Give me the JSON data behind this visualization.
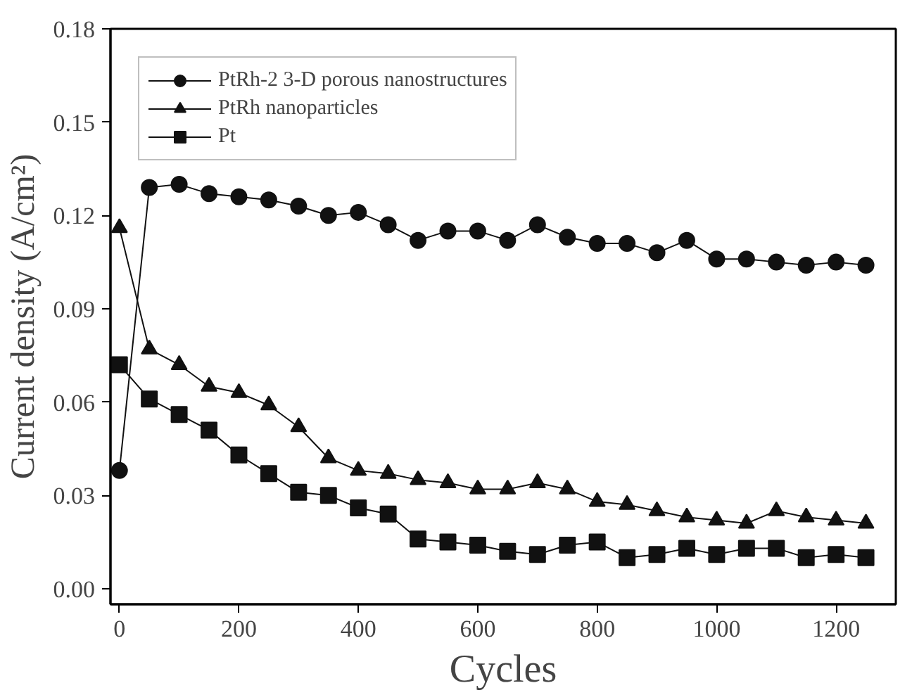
{
  "chart_data": {
    "type": "line",
    "xlabel": "Cycles",
    "ylabel": "Current density (A/cm²)",
    "x": [
      0,
      50,
      100,
      150,
      200,
      250,
      300,
      350,
      400,
      450,
      500,
      550,
      600,
      650,
      700,
      750,
      800,
      850,
      900,
      950,
      1000,
      1050,
      1100,
      1150,
      1200,
      1250
    ],
    "series": [
      {
        "name": "PtRh-2 3-D porous nanostructures",
        "color": "#111111",
        "marker": "circle",
        "values": [
          0.038,
          0.129,
          0.13,
          0.127,
          0.126,
          0.125,
          0.123,
          0.12,
          0.121,
          0.117,
          0.112,
          0.115,
          0.115,
          0.112,
          0.117,
          0.113,
          0.111,
          0.111,
          0.108,
          0.112,
          0.106,
          0.106,
          0.105,
          0.104,
          0.105,
          0.104
        ]
      },
      {
        "name": "PtRh nanoparticles",
        "color": "#111111",
        "marker": "triangle",
        "values": [
          0.116,
          0.077,
          0.072,
          0.065,
          0.063,
          0.059,
          0.052,
          0.042,
          0.038,
          0.037,
          0.035,
          0.034,
          0.032,
          0.032,
          0.034,
          0.032,
          0.028,
          0.027,
          0.025,
          0.023,
          0.022,
          0.021,
          0.025,
          0.023,
          0.022,
          0.021
        ]
      },
      {
        "name": "Pt",
        "color": "#111111",
        "marker": "square",
        "values": [
          0.072,
          0.061,
          0.056,
          0.051,
          0.043,
          0.037,
          0.031,
          0.03,
          0.026,
          0.024,
          0.016,
          0.015,
          0.014,
          0.012,
          0.011,
          0.014,
          0.015,
          0.01,
          0.011,
          0.013,
          0.011,
          0.013,
          0.013,
          0.01,
          0.011,
          0.01
        ]
      }
    ],
    "xlim": [
      -15,
      1300
    ],
    "ylim": [
      -0.005,
      0.18
    ],
    "xticks": [
      0,
      200,
      400,
      600,
      800,
      1000,
      1200
    ],
    "yticks": [
      {
        "value": 0,
        "label": "0.00"
      },
      {
        "value": 0.03,
        "label": "0.03"
      },
      {
        "value": 0.06,
        "label": "0.06"
      },
      {
        "value": 0.09,
        "label": "0.09"
      },
      {
        "value": 0.12,
        "label": "0.12"
      },
      {
        "value": 0.15,
        "label": "0.15"
      },
      {
        "value": 0.18,
        "label": "0.18"
      }
    ],
    "grid": false,
    "legend": "top left",
    "line_style": "solid"
  }
}
